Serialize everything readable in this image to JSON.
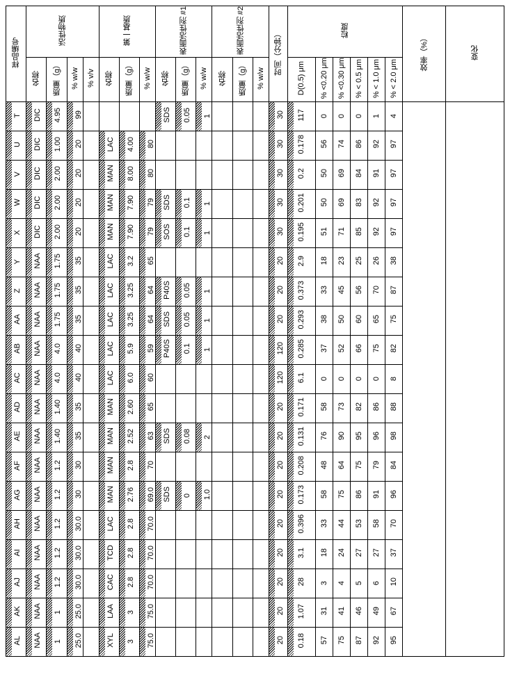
{
  "headers": {
    "sample_id": "样品编号",
    "active": "活性物质",
    "matrix": "第一基质",
    "surf1": "表面活性剂 #1",
    "surf2": "表面活性剂 #2",
    "time": "时间（分钟）",
    "particle": "粒度",
    "eff": "效率（%）",
    "opt": "变化",
    "name": "名称",
    "qty": "质量（g）",
    "ww": "% w/w",
    "vv": "% v/v",
    "d05": "D(0.5) μm",
    "p020": "% <0.20 μm",
    "p030": "% <0.30 μm",
    "p05": "% < 0.5 μm",
    "p10": "% < 1.0 μm",
    "p20": "% < 2.0 μm"
  },
  "rows": [
    {
      "id": "T",
      "a_name": "DIC",
      "a_qty": "4.95",
      "a_ww": "99",
      "a_vv": "",
      "m_name": "",
      "m_qty": "",
      "m_ww": "",
      "s1_name": "SDS",
      "s1_qty": "0.05",
      "s1_ww": "1",
      "s2_name": "",
      "s2_qty": "",
      "s2_ww": "",
      "time": "30",
      "d05": "117",
      "p020": "0",
      "p030": "0",
      "p05": "0",
      "p10": "1",
      "p20": "4"
    },
    {
      "id": "U",
      "a_name": "DIC",
      "a_qty": "1.00",
      "a_ww": "20",
      "a_vv": "",
      "m_name": "LAC",
      "m_qty": "4.00",
      "m_ww": "80",
      "s1_name": "",
      "s1_qty": "",
      "s1_ww": "",
      "s2_name": "",
      "s2_qty": "",
      "s2_ww": "",
      "time": "30",
      "d05": "0.178",
      "p020": "56",
      "p030": "74",
      "p05": "86",
      "p10": "92",
      "p20": "97"
    },
    {
      "id": "V",
      "a_name": "DIC",
      "a_qty": "2.00",
      "a_ww": "20",
      "a_vv": "",
      "m_name": "MAN",
      "m_qty": "8.00",
      "m_ww": "80",
      "s1_name": "",
      "s1_qty": "",
      "s1_ww": "",
      "s2_name": "",
      "s2_qty": "",
      "s2_ww": "",
      "time": "30",
      "d05": "0.2",
      "p020": "50",
      "p030": "69",
      "p05": "84",
      "p10": "91",
      "p20": "97"
    },
    {
      "id": "W",
      "a_name": "DIC",
      "a_qty": "2.00",
      "a_ww": "20",
      "a_vv": "",
      "m_name": "MAN",
      "m_qty": "7.90",
      "m_ww": "79",
      "s1_name": "SDS",
      "s1_qty": "0.1",
      "s1_ww": "1",
      "s2_name": "",
      "s2_qty": "",
      "s2_ww": "",
      "time": "30",
      "d05": "0.201",
      "p020": "50",
      "p030": "69",
      "p05": "83",
      "p10": "92",
      "p20": "97"
    },
    {
      "id": "X",
      "a_name": "DIC",
      "a_qty": "2.00",
      "a_ww": "20",
      "a_vv": "",
      "m_name": "MAN",
      "m_qty": "7.90",
      "m_ww": "79",
      "s1_name": "SOS",
      "s1_qty": "0.1",
      "s1_ww": "1",
      "s2_name": "",
      "s2_qty": "",
      "s2_ww": "",
      "time": "30",
      "d05": "0.195",
      "p020": "51",
      "p030": "71",
      "p05": "85",
      "p10": "92",
      "p20": "97"
    },
    {
      "id": "Y",
      "a_name": "NAA",
      "a_qty": "1.75",
      "a_ww": "35",
      "a_vv": "",
      "m_name": "LAC",
      "m_qty": "3.2",
      "m_ww": "65",
      "s1_name": "",
      "s1_qty": "",
      "s1_ww": "",
      "s2_name": "",
      "s2_qty": "",
      "s2_ww": "",
      "time": "20",
      "d05": "2.9",
      "p020": "18",
      "p030": "23",
      "p05": "25",
      "p10": "26",
      "p20": "38"
    },
    {
      "id": "Z",
      "a_name": "NAA",
      "a_qty": "1.75",
      "a_ww": "35",
      "a_vv": "",
      "m_name": "LAC",
      "m_qty": "3.25",
      "m_ww": "64",
      "s1_name": "P40S",
      "s1_qty": "0.05",
      "s1_ww": "1",
      "s2_name": "",
      "s2_qty": "",
      "s2_ww": "",
      "time": "20",
      "d05": "0.373",
      "p020": "33",
      "p030": "45",
      "p05": "56",
      "p10": "70",
      "p20": "87"
    },
    {
      "id": "AA",
      "a_name": "NAA",
      "a_qty": "1.75",
      "a_ww": "35",
      "a_vv": "",
      "m_name": "LAC",
      "m_qty": "3.25",
      "m_ww": "64",
      "s1_name": "SDS",
      "s1_qty": "0.05",
      "s1_ww": "1",
      "s2_name": "",
      "s2_qty": "",
      "s2_ww": "",
      "time": "20",
      "d05": "0.293",
      "p020": "38",
      "p030": "50",
      "p05": "60",
      "p10": "65",
      "p20": "75"
    },
    {
      "id": "AB",
      "a_name": "NAA",
      "a_qty": "4.0",
      "a_ww": "40",
      "a_vv": "",
      "m_name": "LAC",
      "m_qty": "5.9",
      "m_ww": "59",
      "s1_name": "P40S",
      "s1_qty": "0.1",
      "s1_ww": "1",
      "s2_name": "",
      "s2_qty": "",
      "s2_ww": "",
      "time": "120",
      "d05": "0.285",
      "p020": "37",
      "p030": "52",
      "p05": "66",
      "p10": "75",
      "p20": "82"
    },
    {
      "id": "AC",
      "a_name": "NAA",
      "a_qty": "4.0",
      "a_ww": "40",
      "a_vv": "",
      "m_name": "LAC",
      "m_qty": "6.0",
      "m_ww": "60",
      "s1_name": "",
      "s1_qty": "",
      "s1_ww": "",
      "s2_name": "",
      "s2_qty": "",
      "s2_ww": "",
      "time": "120",
      "d05": "6.1",
      "p020": "0",
      "p030": "0",
      "p05": "0",
      "p10": "0",
      "p20": "8"
    },
    {
      "id": "AD",
      "a_name": "NAA",
      "a_qty": "1.40",
      "a_ww": "35",
      "a_vv": "",
      "m_name": "MAN",
      "m_qty": "2.60",
      "m_ww": "65",
      "s1_name": "",
      "s1_qty": "",
      "s1_ww": "",
      "s2_name": "",
      "s2_qty": "",
      "s2_ww": "",
      "time": "20",
      "d05": "0.171",
      "p020": "58",
      "p030": "73",
      "p05": "82",
      "p10": "86",
      "p20": "88"
    },
    {
      "id": "AE",
      "a_name": "NAA",
      "a_qty": "1.40",
      "a_ww": "35",
      "a_vv": "",
      "m_name": "MAN",
      "m_qty": "2.52",
      "m_ww": "63",
      "s1_name": "SDS",
      "s1_qty": "0.08",
      "s1_ww": "2",
      "s2_name": "",
      "s2_qty": "",
      "s2_ww": "",
      "time": "20",
      "d05": "0.131",
      "p020": "76",
      "p030": "90",
      "p05": "95",
      "p10": "96",
      "p20": "98"
    },
    {
      "id": "AF",
      "a_name": "NAA",
      "a_qty": "1.2",
      "a_ww": "30",
      "a_vv": "",
      "m_name": "MAN",
      "m_qty": "2.8",
      "m_ww": "70",
      "s1_name": "",
      "s1_qty": "",
      "s1_ww": "",
      "s2_name": "",
      "s2_qty": "",
      "s2_ww": "",
      "time": "20",
      "d05": "0.208",
      "p020": "48",
      "p030": "64",
      "p05": "75",
      "p10": "79",
      "p20": "84"
    },
    {
      "id": "AG",
      "a_name": "NAA",
      "a_qty": "1.2",
      "a_ww": "30",
      "a_vv": "",
      "m_name": "MAN",
      "m_qty": "2.76",
      "m_ww": "69.0",
      "s1_name": "SDS",
      "s1_qty": "0",
      "s1_ww": "1.0",
      "s2_name": "",
      "s2_qty": "",
      "s2_ww": "",
      "time": "20",
      "d05": "0.173",
      "p020": "58",
      "p030": "75",
      "p05": "86",
      "p10": "91",
      "p20": "96"
    },
    {
      "id": "AH",
      "a_name": "NAA",
      "a_qty": "1.2",
      "a_ww": "30.0",
      "a_vv": "",
      "m_name": "LAC",
      "m_qty": "2.8",
      "m_ww": "70.0",
      "s1_name": "",
      "s1_qty": "",
      "s1_ww": "",
      "s2_name": "",
      "s2_qty": "",
      "s2_ww": "",
      "time": "20",
      "d05": "0.396",
      "p020": "33",
      "p030": "44",
      "p05": "53",
      "p10": "58",
      "p20": "70"
    },
    {
      "id": "AI",
      "a_name": "NAA",
      "a_qty": "1.2",
      "a_ww": "30.0",
      "a_vv": "",
      "m_name": "TCD",
      "m_qty": "2.8",
      "m_ww": "70.0",
      "s1_name": "",
      "s1_qty": "",
      "s1_ww": "",
      "s2_name": "",
      "s2_qty": "",
      "s2_ww": "",
      "time": "20",
      "d05": "3.1",
      "p020": "18",
      "p030": "24",
      "p05": "27",
      "p10": "27",
      "p20": "37"
    },
    {
      "id": "AJ",
      "a_name": "NAA",
      "a_qty": "1.2",
      "a_ww": "30.0",
      "a_vv": "",
      "m_name": "CAC",
      "m_qty": "2.8",
      "m_ww": "70.0",
      "s1_name": "",
      "s1_qty": "",
      "s1_ww": "",
      "s2_name": "",
      "s2_qty": "",
      "s2_ww": "",
      "time": "20",
      "d05": "28",
      "p020": "3",
      "p030": "4",
      "p05": "5",
      "p10": "6",
      "p20": "10"
    },
    {
      "id": "AK",
      "a_name": "NAA",
      "a_qty": "1",
      "a_ww": "25.0",
      "a_vv": "",
      "m_name": "LAA",
      "m_qty": "3",
      "m_ww": "75.0",
      "s1_name": "",
      "s1_qty": "",
      "s1_ww": "",
      "s2_name": "",
      "s2_qty": "",
      "s2_ww": "",
      "time": "20",
      "d05": "1.07",
      "p020": "31",
      "p030": "41",
      "p05": "46",
      "p10": "49",
      "p20": "67"
    },
    {
      "id": "AL",
      "a_name": "NAA",
      "a_qty": "1",
      "a_ww": "25.0",
      "a_vv": "",
      "m_name": "XYL",
      "m_qty": "3",
      "m_ww": "75.0",
      "s1_name": "",
      "s1_qty": "",
      "s1_ww": "",
      "s2_name": "",
      "s2_qty": "",
      "s2_ww": "",
      "time": "20",
      "d05": "0.18",
      "p020": "57",
      "p030": "75",
      "p05": "87",
      "p10": "92",
      "p20": "95"
    }
  ]
}
